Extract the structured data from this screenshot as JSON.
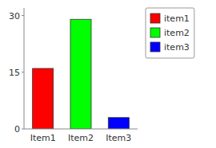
{
  "chart_data": {
    "type": "bar",
    "categories": [
      "Item1",
      "Item2",
      "Item3"
    ],
    "series": [
      {
        "name": "item1",
        "color": "#ff0000",
        "values": [
          16,
          null,
          null
        ]
      },
      {
        "name": "item2",
        "color": "#00ff00",
        "values": [
          null,
          29,
          null
        ]
      },
      {
        "name": "item3",
        "color": "#0000ff",
        "values": [
          null,
          null,
          3
        ]
      }
    ],
    "stacked": true,
    "ylim": [
      0,
      32
    ],
    "yticks": [
      0,
      15,
      30
    ],
    "grid": false,
    "legend": "right"
  }
}
